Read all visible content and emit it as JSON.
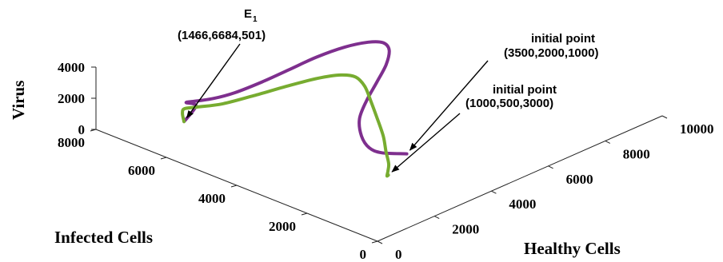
{
  "chart_data": {
    "type": "line3d",
    "axes": {
      "x": {
        "label": "Healthy Cells",
        "ticks": [
          "0",
          "2000",
          "4000",
          "6000",
          "8000",
          "10000"
        ],
        "range": [
          0,
          10000
        ]
      },
      "y": {
        "label": "Infected Cells",
        "ticks": [
          "0",
          "2000",
          "4000",
          "6000",
          "8000"
        ],
        "range": [
          0,
          8000
        ]
      },
      "z": {
        "label": "Virus",
        "ticks": [
          "0",
          "2000",
          "4000"
        ],
        "range": [
          0,
          4000
        ]
      }
    },
    "series": [
      {
        "color": "#7e2f8e",
        "initial_point": [
          3500,
          2000,
          1000
        ],
        "points": [
          [
            3500,
            2000,
            1000
          ],
          [
            3000,
            2300,
            1200
          ],
          [
            2800,
            2500,
            1500
          ],
          [
            2900,
            2800,
            1900
          ],
          [
            3200,
            3100,
            2500
          ],
          [
            3700,
            3300,
            3100
          ],
          [
            4300,
            3500,
            3600
          ],
          [
            5000,
            3800,
            3900
          ],
          [
            5600,
            4200,
            4000
          ],
          [
            6000,
            4700,
            3700
          ],
          [
            6100,
            5200,
            3200
          ],
          [
            5900,
            5700,
            2600
          ],
          [
            5400,
            6100,
            2000
          ],
          [
            4800,
            6400,
            1400
          ],
          [
            4100,
            6600,
            1000
          ],
          [
            3400,
            6800,
            700
          ],
          [
            2900,
            7000,
            550
          ],
          [
            2500,
            7200,
            520
          ],
          [
            2300,
            7300,
            500
          ],
          [
            2400,
            7100,
            380
          ],
          [
            1466,
            6684,
            501
          ]
        ]
      },
      {
        "color": "#77ac30",
        "initial_point": [
          1000,
          500,
          3000
        ],
        "points": [
          [
            1000,
            500,
            3000
          ],
          [
            1200,
            700,
            2600
          ],
          [
            1600,
            1000,
            2300
          ],
          [
            2000,
            1300,
            2200
          ],
          [
            2400,
            1700,
            2300
          ],
          [
            2800,
            2100,
            2600
          ],
          [
            3200,
            2600,
            3000
          ],
          [
            3600,
            3100,
            3300
          ],
          [
            4000,
            3600,
            3500
          ],
          [
            4300,
            4100,
            3400
          ],
          [
            4400,
            4600,
            3000
          ],
          [
            4200,
            5100,
            2500
          ],
          [
            3800,
            5600,
            1900
          ],
          [
            3200,
            6100,
            1300
          ],
          [
            2600,
            6500,
            900
          ],
          [
            2200,
            6900,
            650
          ],
          [
            2000,
            7100,
            530
          ],
          [
            1800,
            7000,
            480
          ],
          [
            1466,
            6684,
            501
          ]
        ]
      }
    ],
    "annotations": [
      {
        "label": "E",
        "subscript": "1",
        "coords": "(1466,6684,501)"
      },
      {
        "label": "initial point",
        "coords": "(3500,2000,1000)"
      },
      {
        "label": "initial point",
        "coords": "(1000,500,3000)"
      }
    ],
    "grid": false
  }
}
